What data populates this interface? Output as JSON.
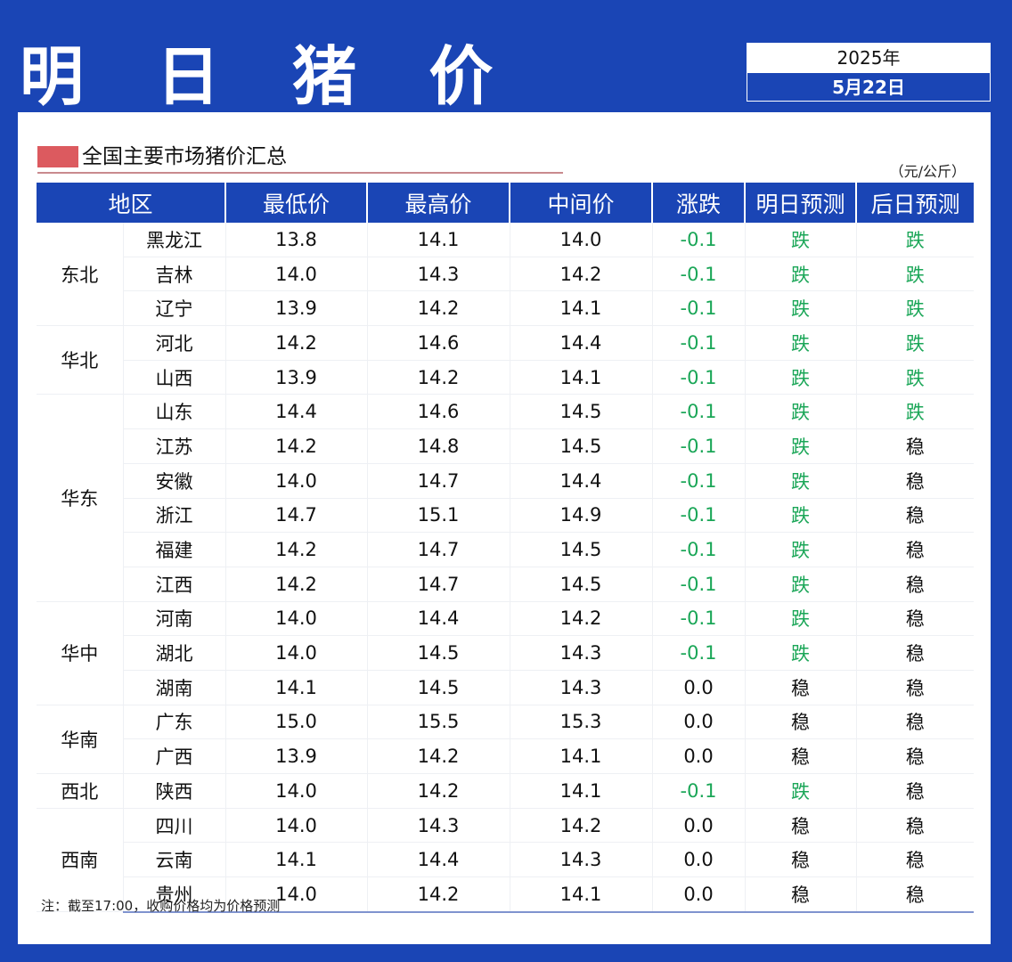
{
  "header": {
    "title": "明 日 猪 价",
    "year": "2025年",
    "date": "5月22日"
  },
  "section": {
    "title": "全国主要市场猪价汇总",
    "unit": "（元/公斤）"
  },
  "colors": {
    "brand_blue": "#1a45b5",
    "accent_red": "#dc5a5f",
    "down_green": "#1aa657"
  },
  "table": {
    "headers": [
      "地区",
      "最低价",
      "最高价",
      "中间价",
      "涨跌",
      "明日预测",
      "后日预测"
    ],
    "groups": [
      {
        "region": "东北",
        "rows": [
          {
            "province": "黑龙江",
            "low": "13.8",
            "high": "14.1",
            "mid": "14.0",
            "change": "-0.1",
            "tomorrow": "跌",
            "dayafter": "跌"
          },
          {
            "province": "吉林",
            "low": "14.0",
            "high": "14.3",
            "mid": "14.2",
            "change": "-0.1",
            "tomorrow": "跌",
            "dayafter": "跌"
          },
          {
            "province": "辽宁",
            "low": "13.9",
            "high": "14.2",
            "mid": "14.1",
            "change": "-0.1",
            "tomorrow": "跌",
            "dayafter": "跌"
          }
        ]
      },
      {
        "region": "华北",
        "rows": [
          {
            "province": "河北",
            "low": "14.2",
            "high": "14.6",
            "mid": "14.4",
            "change": "-0.1",
            "tomorrow": "跌",
            "dayafter": "跌"
          },
          {
            "province": "山西",
            "low": "13.9",
            "high": "14.2",
            "mid": "14.1",
            "change": "-0.1",
            "tomorrow": "跌",
            "dayafter": "跌"
          }
        ]
      },
      {
        "region": "华东",
        "rows": [
          {
            "province": "山东",
            "low": "14.4",
            "high": "14.6",
            "mid": "14.5",
            "change": "-0.1",
            "tomorrow": "跌",
            "dayafter": "跌"
          },
          {
            "province": "江苏",
            "low": "14.2",
            "high": "14.8",
            "mid": "14.5",
            "change": "-0.1",
            "tomorrow": "跌",
            "dayafter": "稳"
          },
          {
            "province": "安徽",
            "low": "14.0",
            "high": "14.7",
            "mid": "14.4",
            "change": "-0.1",
            "tomorrow": "跌",
            "dayafter": "稳"
          },
          {
            "province": "浙江",
            "low": "14.7",
            "high": "15.1",
            "mid": "14.9",
            "change": "-0.1",
            "tomorrow": "跌",
            "dayafter": "稳"
          },
          {
            "province": "福建",
            "low": "14.2",
            "high": "14.7",
            "mid": "14.5",
            "change": "-0.1",
            "tomorrow": "跌",
            "dayafter": "稳"
          },
          {
            "province": "江西",
            "low": "14.2",
            "high": "14.7",
            "mid": "14.5",
            "change": "-0.1",
            "tomorrow": "跌",
            "dayafter": "稳"
          }
        ]
      },
      {
        "region": "华中",
        "rows": [
          {
            "province": "河南",
            "low": "14.0",
            "high": "14.4",
            "mid": "14.2",
            "change": "-0.1",
            "tomorrow": "跌",
            "dayafter": "稳"
          },
          {
            "province": "湖北",
            "low": "14.0",
            "high": "14.5",
            "mid": "14.3",
            "change": "-0.1",
            "tomorrow": "跌",
            "dayafter": "稳"
          },
          {
            "province": "湖南",
            "low": "14.1",
            "high": "14.5",
            "mid": "14.3",
            "change": "0.0",
            "tomorrow": "稳",
            "dayafter": "稳"
          }
        ]
      },
      {
        "region": "华南",
        "rows": [
          {
            "province": "广东",
            "low": "15.0",
            "high": "15.5",
            "mid": "15.3",
            "change": "0.0",
            "tomorrow": "稳",
            "dayafter": "稳"
          },
          {
            "province": "广西",
            "low": "13.9",
            "high": "14.2",
            "mid": "14.1",
            "change": "0.0",
            "tomorrow": "稳",
            "dayafter": "稳"
          }
        ]
      },
      {
        "region": "西北",
        "rows": [
          {
            "province": "陕西",
            "low": "14.0",
            "high": "14.2",
            "mid": "14.1",
            "change": "-0.1",
            "tomorrow": "跌",
            "dayafter": "稳"
          }
        ]
      },
      {
        "region": "西南",
        "rows": [
          {
            "province": "四川",
            "low": "14.0",
            "high": "14.3",
            "mid": "14.2",
            "change": "0.0",
            "tomorrow": "稳",
            "dayafter": "稳"
          },
          {
            "province": "云南",
            "low": "14.1",
            "high": "14.4",
            "mid": "14.3",
            "change": "0.0",
            "tomorrow": "稳",
            "dayafter": "稳"
          },
          {
            "province": "贵州",
            "low": "14.0",
            "high": "14.2",
            "mid": "14.1",
            "change": "0.0",
            "tomorrow": "稳",
            "dayafter": "稳"
          }
        ]
      }
    ]
  },
  "footer": {
    "note": "注：截至17:00，收购价格均为价格预测"
  }
}
